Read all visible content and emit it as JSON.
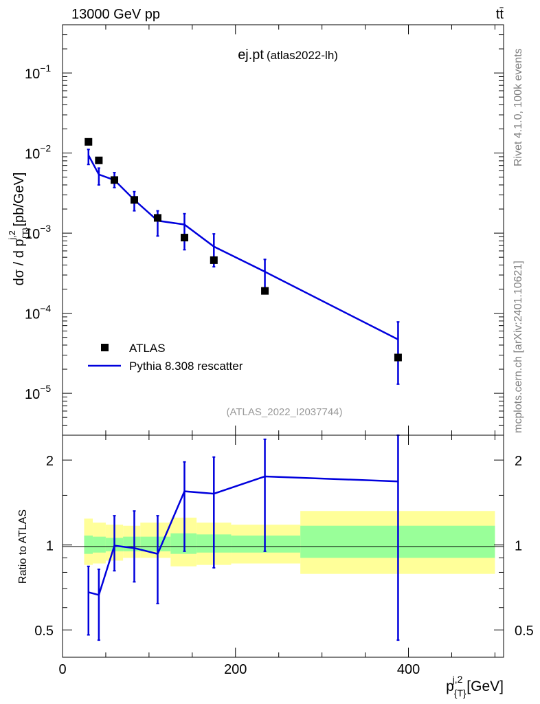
{
  "header": {
    "left": "13000 GeV pp",
    "right": "tt̄"
  },
  "side_labels": {
    "rivet": "Rivet 4.1.0,  100k events",
    "mcplots": "mcplots.cern.ch [arXiv:2401.10621]"
  },
  "chart_data": [
    {
      "panel": "main",
      "type": "scatter+line",
      "title": "ej.pt",
      "subtitle": "(atlas2022-lh)",
      "watermark": "(ATLAS_2022_I2037744)",
      "ylabel": "dσ / d p_{T}^{j,2} [pb/GeV]",
      "yscale": "log",
      "ylim": [
        3e-06,
        0.4
      ],
      "xlim": [
        0,
        510
      ],
      "yticks": [
        {
          "value": 1e-05,
          "base": "10",
          "exp": "−5"
        },
        {
          "value": 0.0001,
          "base": "10",
          "exp": "−4"
        },
        {
          "value": 0.001,
          "base": "10",
          "exp": "−3"
        },
        {
          "value": 0.01,
          "base": "10",
          "exp": "−2"
        },
        {
          "value": 0.1,
          "base": "10",
          "exp": "−1"
        }
      ],
      "legend": {
        "placement": "lower-left",
        "entries": [
          {
            "label": "ATLAS",
            "marker": "square",
            "color": "#000000"
          },
          {
            "label": "Pythia 8.308 rescatter",
            "marker": "line",
            "color": "#0000dd"
          }
        ]
      },
      "series": [
        {
          "name": "ATLAS",
          "style": "square",
          "color": "#000000",
          "x": [
            30,
            42,
            60,
            83,
            110,
            141,
            175,
            234,
            388
          ],
          "y": [
            0.0138,
            0.0081,
            0.0046,
            0.0026,
            0.00155,
            0.00088,
            0.00046,
            0.00019,
            2.8e-05
          ]
        },
        {
          "name": "Pythia 8.308 rescatter",
          "style": "line",
          "color": "#0000dd",
          "bins": [
            {
              "xlo": 30,
              "xhi": 42,
              "x": 30,
              "y": 0.0094,
              "ylo": 0.0072,
              "yhi": 0.0111
            },
            {
              "xlo": 42,
              "xhi": 60,
              "x": 42,
              "y": 0.0054,
              "ylo": 0.004,
              "yhi": 0.0065
            },
            {
              "xlo": 60,
              "xhi": 83,
              "x": 60,
              "y": 0.0046,
              "ylo": 0.0037,
              "yhi": 0.0057
            },
            {
              "xlo": 83,
              "xhi": 110,
              "x": 83,
              "y": 0.0026,
              "ylo": 0.0019,
              "yhi": 0.0033
            },
            {
              "xlo": 110,
              "xhi": 141,
              "x": 110,
              "y": 0.00143,
              "ylo": 0.00092,
              "yhi": 0.0019
            },
            {
              "xlo": 141,
              "xhi": 175,
              "x": 141,
              "y": 0.00128,
              "ylo": 0.00062,
              "yhi": 0.00175
            },
            {
              "xlo": 175,
              "xhi": 234,
              "x": 175,
              "y": 0.00068,
              "ylo": 0.00038,
              "yhi": 0.00098
            },
            {
              "xlo": 234,
              "xhi": 388,
              "x": 234,
              "y": 0.00033,
              "ylo": 0.00018,
              "yhi": 0.00047
            },
            {
              "xlo": 388,
              "xhi": 500,
              "x": 388,
              "y": 4.7e-05,
              "ylo": 1.3e-05,
              "yhi": 7.8e-05
            }
          ]
        }
      ]
    },
    {
      "panel": "ratio",
      "type": "line",
      "ylabel": "Ratio to ATLAS",
      "xlabel": "p_{T}^{j,2} [GeV]",
      "ylim": [
        0.4,
        2.45
      ],
      "xlim": [
        0,
        510
      ],
      "xticks": [
        0,
        200,
        400
      ],
      "yticks": [
        0.5,
        1,
        2
      ],
      "uncertainty_bands": [
        {
          "xlo": 25,
          "xhi": 35,
          "stat_lo": 0.93,
          "stat_hi": 1.08,
          "tot_lo": 0.85,
          "tot_hi": 1.24
        },
        {
          "xlo": 35,
          "xhi": 50,
          "stat_lo": 0.94,
          "stat_hi": 1.07,
          "tot_lo": 0.86,
          "tot_hi": 1.2
        },
        {
          "xlo": 50,
          "xhi": 70,
          "stat_lo": 0.95,
          "stat_hi": 1.06,
          "tot_lo": 0.88,
          "tot_hi": 1.18
        },
        {
          "xlo": 70,
          "xhi": 90,
          "stat_lo": 0.95,
          "stat_hi": 1.07,
          "tot_lo": 0.9,
          "tot_hi": 1.17
        },
        {
          "xlo": 90,
          "xhi": 125,
          "stat_lo": 0.95,
          "stat_hi": 1.07,
          "tot_lo": 0.9,
          "tot_hi": 1.2
        },
        {
          "xlo": 125,
          "xhi": 155,
          "stat_lo": 0.93,
          "stat_hi": 1.1,
          "tot_lo": 0.84,
          "tot_hi": 1.25
        },
        {
          "xlo": 155,
          "xhi": 195,
          "stat_lo": 0.94,
          "stat_hi": 1.09,
          "tot_lo": 0.85,
          "tot_hi": 1.2
        },
        {
          "xlo": 195,
          "xhi": 275,
          "stat_lo": 0.94,
          "stat_hi": 1.08,
          "tot_lo": 0.86,
          "tot_hi": 1.18
        },
        {
          "xlo": 275,
          "xhi": 500,
          "stat_lo": 0.9,
          "stat_hi": 1.17,
          "tot_lo": 0.79,
          "tot_hi": 1.32
        }
      ],
      "series": [
        {
          "name": "Pythia 8.308 rescatter / ATLAS",
          "color": "#0000dd",
          "x": [
            30,
            42,
            60,
            83,
            110,
            141,
            175,
            234,
            388
          ],
          "y": [
            0.68,
            0.665,
            0.995,
            0.975,
            0.93,
            1.55,
            1.52,
            1.75,
            1.68
          ],
          "ylo": [
            0.48,
            0.46,
            0.81,
            0.74,
            0.62,
            0.95,
            0.83,
            0.95,
            0.46
          ],
          "yhi": [
            0.84,
            0.82,
            1.27,
            1.32,
            1.27,
            1.97,
            2.05,
            2.37,
            2.45
          ]
        }
      ]
    }
  ]
}
